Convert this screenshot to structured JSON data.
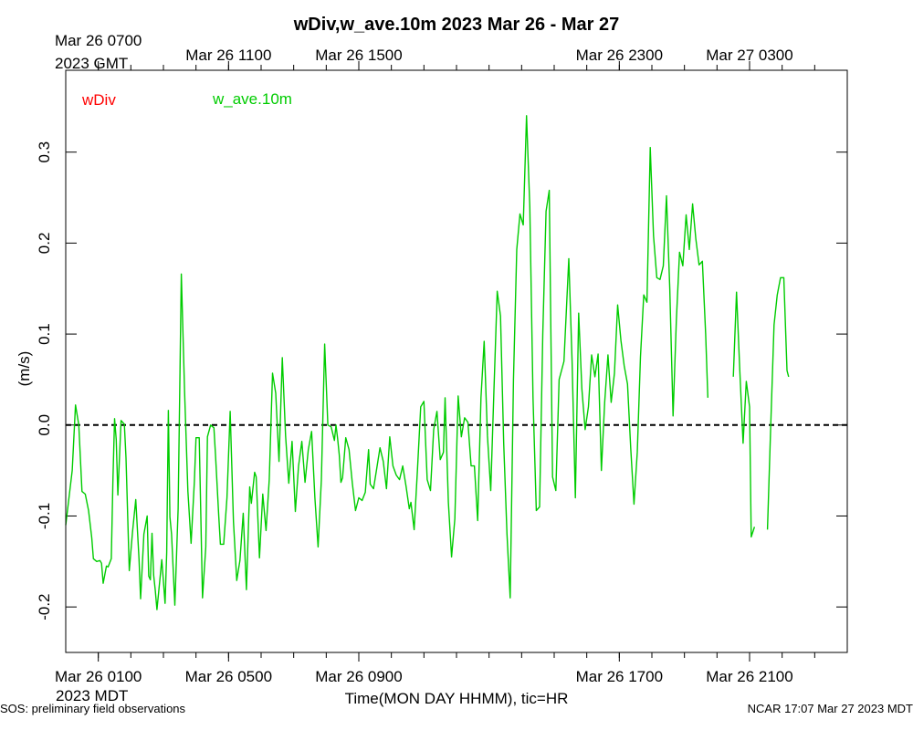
{
  "chart_data": {
    "type": "line",
    "title": "wDiv,w_ave.10m 2023 Mar 26 - Mar 27",
    "xlabel": "Time(MON DAY HHMM), tic=HR",
    "ylabel": "(m/s)",
    "x_unit": "hours since 2023-03-26 00:00 MDT",
    "xlim": [
      0,
      24
    ],
    "ylim": [
      -0.25,
      0.39
    ],
    "yticks": [
      -0.2,
      -0.1,
      0.0,
      0.1,
      0.2,
      0.3
    ],
    "ytick_labels": [
      "-0.2",
      "-0.1",
      "0.0",
      "0.1",
      "0.2",
      "0.3"
    ],
    "minor_xticks_hours": [
      1,
      2,
      3,
      4,
      5,
      6,
      7,
      8,
      9,
      10,
      11,
      12,
      13,
      14,
      15,
      16,
      17,
      18,
      19,
      20,
      21,
      22,
      23
    ],
    "bottom_ticks": [
      {
        "hour": 1,
        "label": "Mar 26 0100",
        "sublabel": "2023 MDT"
      },
      {
        "hour": 5,
        "label": "Mar 26 0500",
        "sublabel": ""
      },
      {
        "hour": 9,
        "label": "Mar 26 0900",
        "sublabel": ""
      },
      {
        "hour": 17,
        "label": "Mar 26 1700",
        "sublabel": ""
      },
      {
        "hour": 21,
        "label": "Mar 26 2100",
        "sublabel": ""
      }
    ],
    "top_ticks": [
      {
        "hour": 1,
        "label": "Mar 26 0700",
        "sublabel": "2023 GMT"
      },
      {
        "hour": 5,
        "label": "Mar 26 1100",
        "sublabel": ""
      },
      {
        "hour": 9,
        "label": "Mar 26 1500",
        "sublabel": ""
      },
      {
        "hour": 17,
        "label": "Mar 26 2300",
        "sublabel": ""
      },
      {
        "hour": 21,
        "label": "Mar 27 0300",
        "sublabel": ""
      }
    ],
    "zero_line": {
      "y": 0.0,
      "style": "dashed"
    },
    "grid": false,
    "legend_position": "top-left",
    "series": [
      {
        "name": "wDiv",
        "color": "#ff0000",
        "values": []
      },
      {
        "name": "w_ave.10m",
        "color": "#00cc00",
        "segments": [
          [
            [
              0.0,
              -0.11
            ],
            [
              0.2,
              -0.05
            ],
            [
              0.3,
              0.022
            ],
            [
              0.4,
              0.0
            ],
            [
              0.5,
              -0.073
            ],
            [
              0.6,
              -0.076
            ],
            [
              0.7,
              -0.094
            ],
            [
              0.8,
              -0.124
            ],
            [
              0.85,
              -0.147
            ],
            [
              0.95,
              -0.15
            ],
            [
              1.05,
              -0.149
            ],
            [
              1.1,
              -0.152
            ],
            [
              1.15,
              -0.174
            ],
            [
              1.25,
              -0.155
            ],
            [
              1.3,
              -0.156
            ],
            [
              1.4,
              -0.147
            ],
            [
              1.45,
              -0.06
            ],
            [
              1.5,
              0.007
            ],
            [
              1.55,
              -0.016
            ],
            [
              1.6,
              -0.077
            ],
            [
              1.7,
              0.005
            ],
            [
              1.8,
              0.001
            ],
            [
              1.85,
              -0.036
            ],
            [
              1.95,
              -0.16
            ],
            [
              2.05,
              -0.118
            ],
            [
              2.15,
              -0.082
            ],
            [
              2.25,
              -0.148
            ],
            [
              2.3,
              -0.191
            ],
            [
              2.4,
              -0.12
            ],
            [
              2.5,
              -0.1
            ],
            [
              2.55,
              -0.166
            ],
            [
              2.6,
              -0.17
            ],
            [
              2.65,
              -0.119
            ],
            [
              2.7,
              -0.165
            ],
            [
              2.75,
              -0.182
            ],
            [
              2.8,
              -0.203
            ],
            [
              2.9,
              -0.167
            ],
            [
              2.95,
              -0.148
            ],
            [
              3.05,
              -0.196
            ],
            [
              3.1,
              -0.14
            ],
            [
              3.15,
              0.016
            ],
            [
              3.2,
              -0.101
            ],
            [
              3.25,
              -0.12
            ],
            [
              3.35,
              -0.198
            ],
            [
              3.45,
              -0.092
            ],
            [
              3.55,
              0.166
            ],
            [
              3.65,
              0.036
            ],
            [
              3.75,
              -0.073
            ],
            [
              3.85,
              -0.13
            ],
            [
              3.95,
              -0.062
            ],
            [
              4.0,
              -0.014
            ],
            [
              4.1,
              -0.014
            ],
            [
              4.2,
              -0.19
            ],
            [
              4.3,
              -0.134
            ],
            [
              4.35,
              -0.013
            ],
            [
              4.45,
              0.0
            ],
            [
              4.55,
              -0.003
            ],
            [
              4.6,
              -0.034
            ],
            [
              4.7,
              -0.1
            ],
            [
              4.75,
              -0.131
            ],
            [
              4.85,
              -0.131
            ],
            [
              4.95,
              -0.08
            ],
            [
              5.05,
              0.015
            ],
            [
              5.15,
              -0.106
            ],
            [
              5.25,
              -0.171
            ],
            [
              5.3,
              -0.16
            ],
            [
              5.35,
              -0.149
            ],
            [
              5.45,
              -0.097
            ],
            [
              5.55,
              -0.181
            ],
            [
              5.65,
              -0.068
            ],
            [
              5.7,
              -0.086
            ],
            [
              5.8,
              -0.052
            ],
            [
              5.85,
              -0.057
            ],
            [
              5.95,
              -0.146
            ],
            [
              6.05,
              -0.076
            ],
            [
              6.15,
              -0.116
            ],
            [
              6.25,
              -0.06
            ],
            [
              6.35,
              0.057
            ],
            [
              6.45,
              0.035
            ],
            [
              6.55,
              -0.04
            ],
            [
              6.65,
              0.074
            ],
            [
              6.75,
              -0.012
            ],
            [
              6.85,
              -0.064
            ],
            [
              6.95,
              -0.018
            ],
            [
              7.05,
              -0.095
            ],
            [
              7.15,
              -0.045
            ],
            [
              7.25,
              -0.018
            ],
            [
              7.35,
              -0.063
            ],
            [
              7.45,
              -0.027
            ],
            [
              7.55,
              -0.007
            ],
            [
              7.65,
              -0.08
            ],
            [
              7.75,
              -0.134
            ],
            [
              7.85,
              -0.06
            ],
            [
              7.95,
              0.089
            ],
            [
              8.05,
              0.0
            ],
            [
              8.15,
              -0.002
            ],
            [
              8.25,
              -0.017
            ],
            [
              8.3,
              0.0
            ],
            [
              8.35,
              -0.015
            ],
            [
              8.4,
              -0.033
            ],
            [
              8.45,
              -0.063
            ],
            [
              8.5,
              -0.058
            ],
            [
              8.6,
              -0.014
            ],
            [
              8.7,
              -0.027
            ],
            [
              8.8,
              -0.064
            ],
            [
              8.9,
              -0.094
            ],
            [
              9.0,
              -0.08
            ],
            [
              9.1,
              -0.083
            ],
            [
              9.2,
              -0.074
            ],
            [
              9.3,
              -0.027
            ],
            [
              9.35,
              -0.065
            ],
            [
              9.45,
              -0.07
            ],
            [
              9.55,
              -0.048
            ],
            [
              9.65,
              -0.025
            ],
            [
              9.75,
              -0.04
            ],
            [
              9.85,
              -0.07
            ],
            [
              9.95,
              -0.013
            ],
            [
              10.05,
              -0.045
            ],
            [
              10.15,
              -0.055
            ],
            [
              10.25,
              -0.06
            ],
            [
              10.35,
              -0.045
            ],
            [
              10.45,
              -0.067
            ],
            [
              10.55,
              -0.092
            ],
            [
              10.6,
              -0.085
            ],
            [
              10.7,
              -0.115
            ],
            [
              10.8,
              -0.05
            ],
            [
              10.9,
              0.02
            ],
            [
              11.0,
              0.026
            ],
            [
              11.1,
              -0.06
            ],
            [
              11.2,
              -0.072
            ],
            [
              11.3,
              -0.005
            ],
            [
              11.4,
              0.015
            ],
            [
              11.5,
              -0.038
            ],
            [
              11.6,
              -0.03
            ],
            [
              11.65,
              0.03
            ],
            [
              11.75,
              -0.085
            ],
            [
              11.85,
              -0.145
            ],
            [
              11.95,
              -0.103
            ],
            [
              12.05,
              0.032
            ],
            [
              12.15,
              -0.013
            ],
            [
              12.25,
              0.008
            ],
            [
              12.35,
              0.003
            ],
            [
              12.45,
              -0.045
            ],
            [
              12.55,
              -0.045
            ],
            [
              12.65,
              -0.105
            ],
            [
              12.75,
              0.03
            ],
            [
              12.85,
              0.092
            ],
            [
              12.95,
              -0.012
            ],
            [
              13.05,
              -0.072
            ],
            [
              13.15,
              0.038
            ],
            [
              13.25,
              0.147
            ],
            [
              13.35,
              0.12
            ],
            [
              13.45,
              -0.02
            ],
            [
              13.55,
              -0.12
            ],
            [
              13.65,
              -0.19
            ],
            [
              13.75,
              0.05
            ],
            [
              13.85,
              0.193
            ],
            [
              13.95,
              0.232
            ],
            [
              14.05,
              0.22
            ],
            [
              14.15,
              0.34
            ],
            [
              14.25,
              0.24
            ],
            [
              14.35,
              0.03
            ],
            [
              14.45,
              -0.094
            ],
            [
              14.55,
              -0.09
            ],
            [
              14.65,
              0.1
            ],
            [
              14.75,
              0.235
            ],
            [
              14.85,
              0.258
            ],
            [
              14.95,
              -0.057
            ],
            [
              15.05,
              -0.072
            ],
            [
              15.15,
              0.05
            ],
            [
              15.3,
              0.07
            ],
            [
              15.45,
              0.183
            ],
            [
              15.55,
              0.07
            ],
            [
              15.65,
              -0.08
            ],
            [
              15.75,
              0.123
            ],
            [
              15.85,
              0.04
            ],
            [
              15.95,
              -0.005
            ],
            [
              16.05,
              0.02
            ],
            [
              16.15,
              0.077
            ],
            [
              16.25,
              0.053
            ],
            [
              16.35,
              0.078
            ],
            [
              16.45,
              -0.05
            ],
            [
              16.55,
              0.025
            ],
            [
              16.65,
              0.077
            ],
            [
              16.75,
              0.025
            ],
            [
              16.85,
              0.057
            ],
            [
              16.95,
              0.132
            ],
            [
              17.05,
              0.093
            ],
            [
              17.15,
              0.065
            ],
            [
              17.25,
              0.045
            ],
            [
              17.35,
              -0.025
            ],
            [
              17.45,
              -0.087
            ],
            [
              17.55,
              -0.03
            ],
            [
              17.65,
              0.075
            ],
            [
              17.75,
              0.143
            ],
            [
              17.85,
              0.135
            ],
            [
              17.95,
              0.305
            ],
            [
              18.05,
              0.208
            ],
            [
              18.15,
              0.162
            ],
            [
              18.25,
              0.16
            ],
            [
              18.35,
              0.175
            ],
            [
              18.45,
              0.252
            ],
            [
              18.55,
              0.15
            ],
            [
              18.65,
              0.01
            ],
            [
              18.75,
              0.115
            ],
            [
              18.85,
              0.19
            ],
            [
              18.95,
              0.175
            ],
            [
              19.05,
              0.231
            ],
            [
              19.15,
              0.193
            ],
            [
              19.25,
              0.243
            ],
            [
              19.35,
              0.205
            ],
            [
              19.45,
              0.176
            ],
            [
              19.55,
              0.18
            ],
            [
              19.65,
              0.1
            ],
            [
              19.72,
              0.03
            ]
          ],
          [
            [
              20.5,
              0.053
            ],
            [
              20.6,
              0.146
            ],
            [
              20.7,
              0.06
            ],
            [
              20.8,
              -0.02
            ],
            [
              20.9,
              0.048
            ],
            [
              21.0,
              0.02
            ],
            [
              21.05,
              -0.123
            ],
            [
              21.15,
              -0.112
            ]
          ],
          [
            [
              21.55,
              -0.115
            ],
            [
              21.65,
              0.0
            ],
            [
              21.75,
              0.11
            ],
            [
              21.85,
              0.143
            ],
            [
              21.95,
              0.162
            ],
            [
              22.05,
              0.162
            ],
            [
              22.15,
              0.06
            ],
            [
              22.2,
              0.053
            ]
          ]
        ]
      }
    ]
  },
  "legend": {
    "items": [
      {
        "label": "wDiv",
        "color": "#ff0000"
      },
      {
        "label": "w_ave.10m",
        "color": "#00cc00"
      }
    ]
  },
  "footer": {
    "left": "SOS: preliminary field observations",
    "right": "NCAR 17:07 Mar 27 2023 MDT"
  }
}
